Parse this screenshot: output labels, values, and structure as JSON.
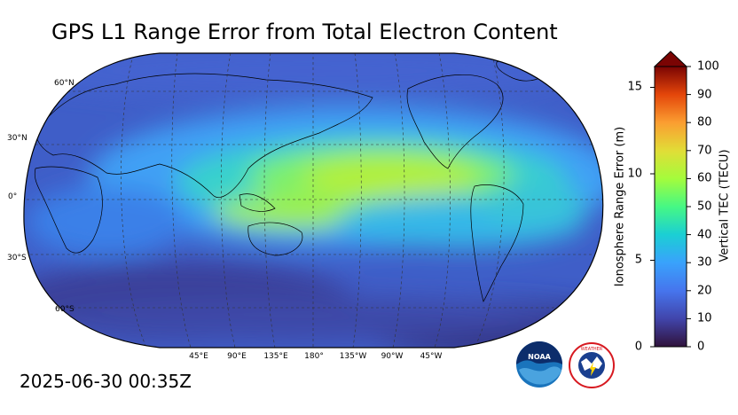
{
  "title": "GPS L1 Range Error from Total Electron Content",
  "timestamp": "2025-06-30 00:35Z",
  "map": {
    "projection": "robinson",
    "lat_labels": [
      "60°N",
      "30°N",
      "0°",
      "30°S",
      "60°S"
    ],
    "lon_labels": [
      "45°E",
      "90°E",
      "135°E",
      "180°",
      "135°W",
      "90°W",
      "45°W"
    ]
  },
  "colorbar": {
    "left_label": "Ionosphere Range Error (m)",
    "right_label": "Vertical TEC (TECU)",
    "left_ticks": [
      "0",
      "5",
      "10",
      "15"
    ],
    "right_ticks": [
      "0",
      "10",
      "20",
      "30",
      "40",
      "50",
      "60",
      "70",
      "80",
      "90",
      "100"
    ],
    "left_range": [
      0,
      16.2
    ],
    "right_range": [
      0,
      100
    ],
    "extend": "max",
    "colormap": "turbo"
  },
  "colors": {
    "low": "#30123b",
    "mid_low": "#3e9bfe",
    "mid": "#46f884",
    "high": "#e1dd37",
    "max": "#7a0403"
  },
  "logos": {
    "noaa_text": "NOAA",
    "nws_text": "NATIONAL WEATHER SERVICE"
  }
}
